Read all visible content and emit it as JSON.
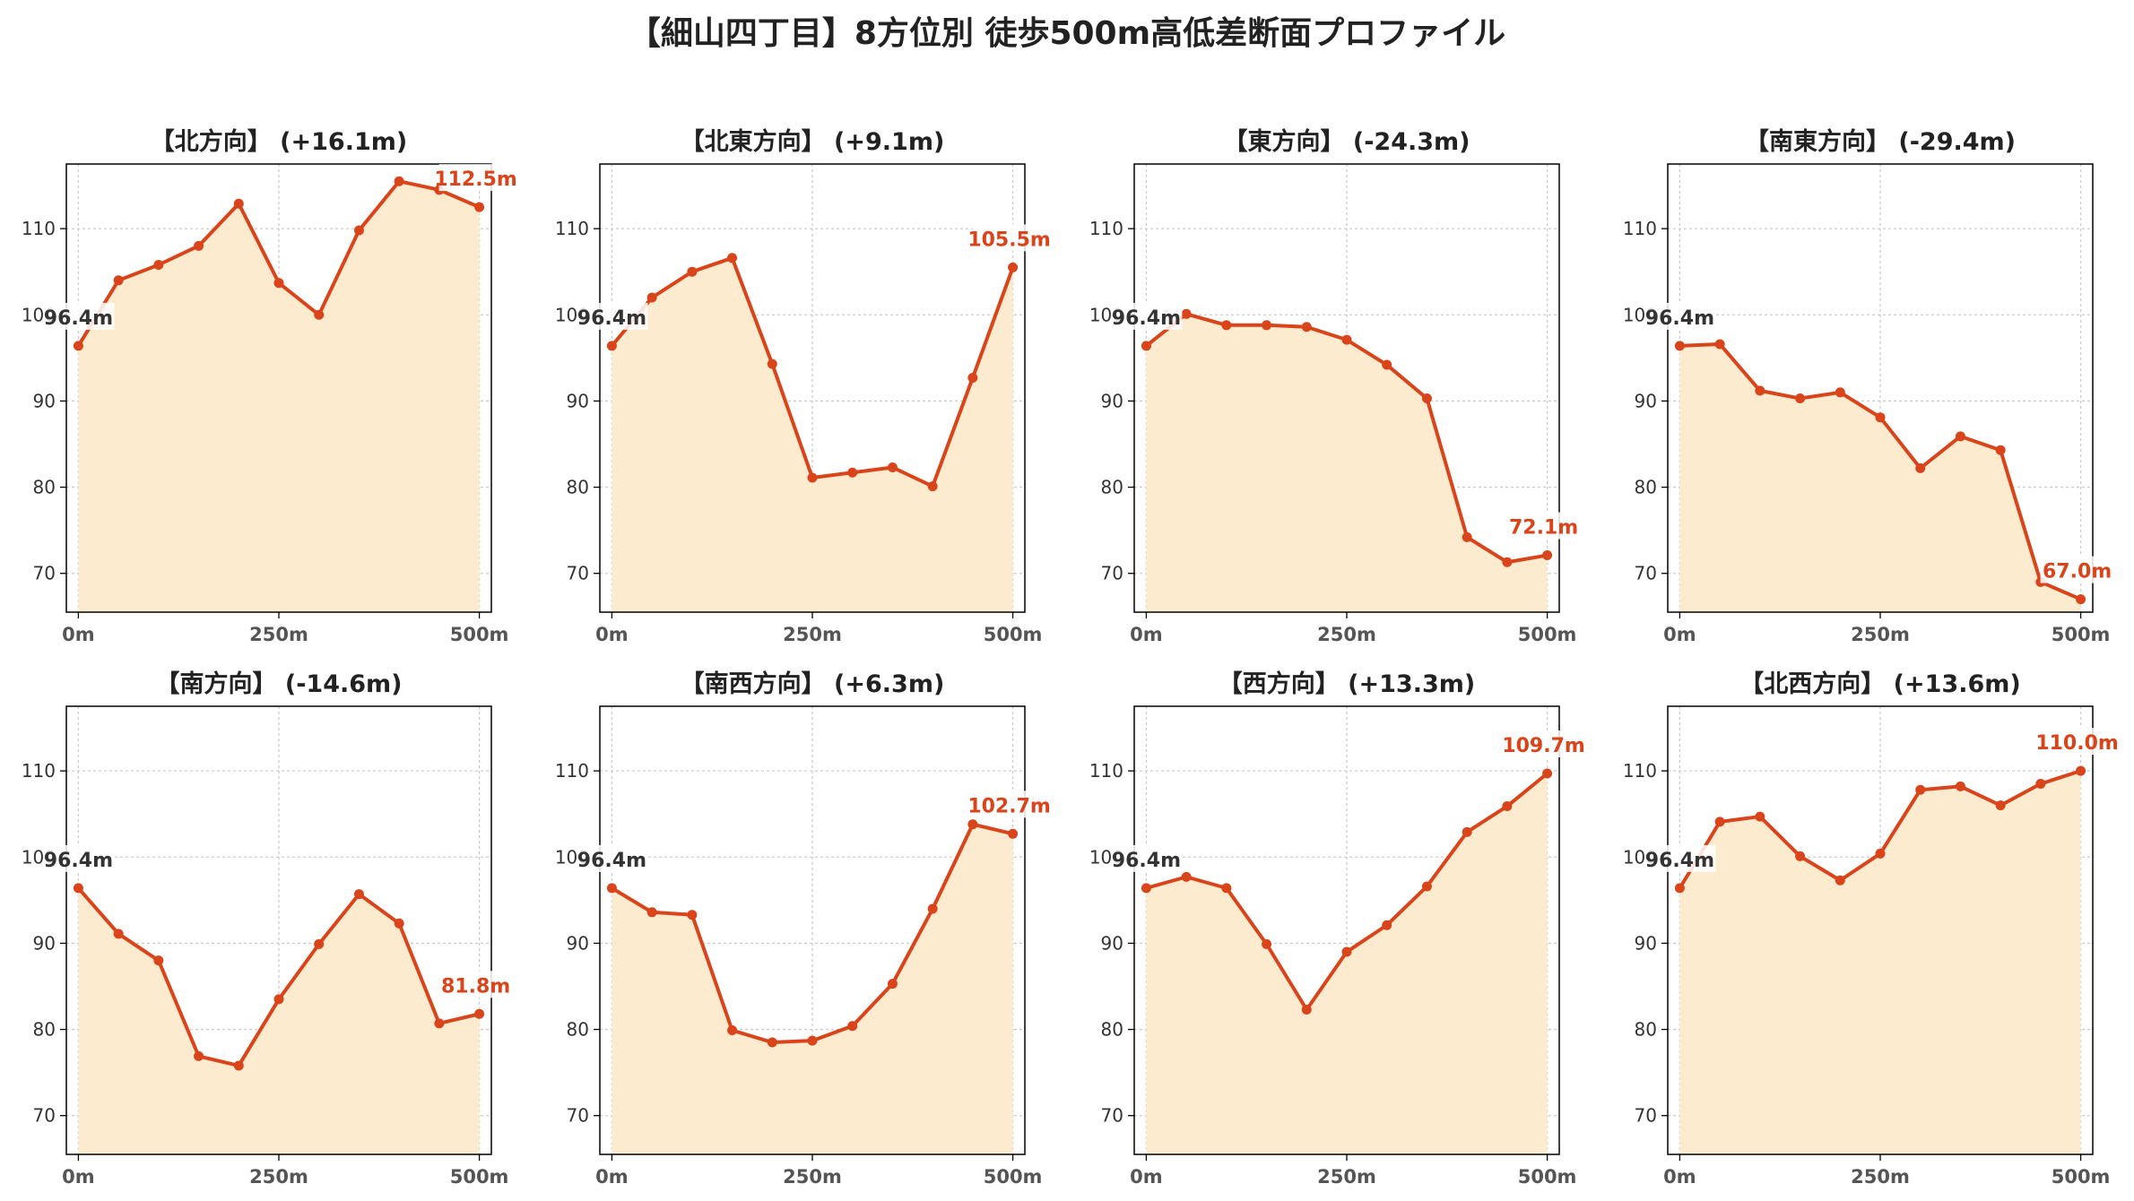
{
  "title": "【細山四丁目】8方位別 徒歩500m高低差断面プロファイル",
  "colors": {
    "line": "#d9441a",
    "fill": "#fdebd0",
    "grid": "#cccccc",
    "end_label": "#d9441a",
    "start_label": "#333333"
  },
  "chart_data": [
    {
      "type": "area",
      "title": "【北方向】 (+16.1m)",
      "x": [
        0,
        50,
        100,
        150,
        200,
        250,
        300,
        350,
        400,
        450,
        500
      ],
      "values": [
        96.4,
        104.0,
        105.8,
        108.0,
        112.9,
        103.7,
        100.0,
        109.8,
        115.5,
        114.5,
        112.5
      ],
      "start_label": "96.4m",
      "end_label": "112.5m",
      "xticks": [
        "0m",
        "250m",
        "500m"
      ],
      "yticks": [
        70,
        80,
        90,
        100,
        110
      ],
      "ylim": [
        65.5,
        117.5
      ],
      "xlim": [
        -15,
        515
      ],
      "grid": true
    },
    {
      "type": "area",
      "title": "【北東方向】 (+9.1m)",
      "x": [
        0,
        50,
        100,
        150,
        200,
        250,
        300,
        350,
        400,
        450,
        500
      ],
      "values": [
        96.4,
        102.0,
        105.0,
        106.6,
        94.3,
        81.1,
        81.7,
        82.3,
        80.1,
        92.7,
        105.5
      ],
      "start_label": "96.4m",
      "end_label": "105.5m",
      "xticks": [
        "0m",
        "250m",
        "500m"
      ],
      "yticks": [
        70,
        80,
        90,
        100,
        110
      ],
      "ylim": [
        65.5,
        117.5
      ],
      "xlim": [
        -15,
        515
      ],
      "grid": true
    },
    {
      "type": "area",
      "title": "【東方向】 (-24.3m)",
      "x": [
        0,
        50,
        100,
        150,
        200,
        250,
        300,
        350,
        400,
        450,
        500
      ],
      "values": [
        96.4,
        100.1,
        98.8,
        98.8,
        98.6,
        97.1,
        94.2,
        90.3,
        74.2,
        71.3,
        72.1
      ],
      "start_label": "96.4m",
      "end_label": "72.1m",
      "xticks": [
        "0m",
        "250m",
        "500m"
      ],
      "yticks": [
        70,
        80,
        90,
        100,
        110
      ],
      "ylim": [
        65.5,
        117.5
      ],
      "xlim": [
        -15,
        515
      ],
      "grid": true
    },
    {
      "type": "area",
      "title": "【南東方向】 (-29.4m)",
      "x": [
        0,
        50,
        100,
        150,
        200,
        250,
        300,
        350,
        400,
        450,
        500
      ],
      "values": [
        96.4,
        96.6,
        91.2,
        90.3,
        91.0,
        88.1,
        82.2,
        85.9,
        84.3,
        69.0,
        67.0
      ],
      "start_label": "96.4m",
      "end_label": "67.0m",
      "xticks": [
        "0m",
        "250m",
        "500m"
      ],
      "yticks": [
        70,
        80,
        90,
        100,
        110
      ],
      "ylim": [
        65.5,
        117.5
      ],
      "xlim": [
        -15,
        515
      ],
      "grid": true
    },
    {
      "type": "area",
      "title": "【南方向】 (-14.6m)",
      "x": [
        0,
        50,
        100,
        150,
        200,
        250,
        300,
        350,
        400,
        450,
        500
      ],
      "values": [
        96.4,
        91.1,
        88.0,
        76.9,
        75.8,
        83.5,
        89.9,
        95.7,
        92.3,
        80.7,
        81.8
      ],
      "start_label": "96.4m",
      "end_label": "81.8m",
      "xticks": [
        "0m",
        "250m",
        "500m"
      ],
      "yticks": [
        70,
        80,
        90,
        100,
        110
      ],
      "ylim": [
        65.5,
        117.5
      ],
      "xlim": [
        -15,
        515
      ],
      "grid": true
    },
    {
      "type": "area",
      "title": "【南西方向】 (+6.3m)",
      "x": [
        0,
        50,
        100,
        150,
        200,
        250,
        300,
        350,
        400,
        450,
        500
      ],
      "values": [
        96.4,
        93.6,
        93.3,
        79.9,
        78.5,
        78.7,
        80.4,
        85.3,
        94.0,
        103.8,
        102.7
      ],
      "start_label": "96.4m",
      "end_label": "102.7m",
      "xticks": [
        "0m",
        "250m",
        "500m"
      ],
      "yticks": [
        70,
        80,
        90,
        100,
        110
      ],
      "ylim": [
        65.5,
        117.5
      ],
      "xlim": [
        -15,
        515
      ],
      "grid": true
    },
    {
      "type": "area",
      "title": "【西方向】 (+13.3m)",
      "x": [
        0,
        50,
        100,
        150,
        200,
        250,
        300,
        350,
        400,
        450,
        500
      ],
      "values": [
        96.4,
        97.7,
        96.4,
        89.9,
        82.3,
        89.0,
        92.1,
        96.6,
        102.9,
        105.9,
        109.7
      ],
      "start_label": "96.4m",
      "end_label": "109.7m",
      "xticks": [
        "0m",
        "250m",
        "500m"
      ],
      "yticks": [
        70,
        80,
        90,
        100,
        110
      ],
      "ylim": [
        65.5,
        117.5
      ],
      "xlim": [
        -15,
        515
      ],
      "grid": true
    },
    {
      "type": "area",
      "title": "【北西方向】 (+13.6m)",
      "x": [
        0,
        50,
        100,
        150,
        200,
        250,
        300,
        350,
        400,
        450,
        500
      ],
      "values": [
        96.4,
        104.1,
        104.7,
        100.1,
        97.3,
        100.4,
        107.8,
        108.2,
        106.0,
        108.5,
        110.0
      ],
      "start_label": "96.4m",
      "end_label": "110.0m",
      "xticks": [
        "0m",
        "250m",
        "500m"
      ],
      "yticks": [
        70,
        80,
        90,
        100,
        110
      ],
      "ylim": [
        65.5,
        117.5
      ],
      "xlim": [
        -15,
        515
      ],
      "grid": true
    }
  ]
}
